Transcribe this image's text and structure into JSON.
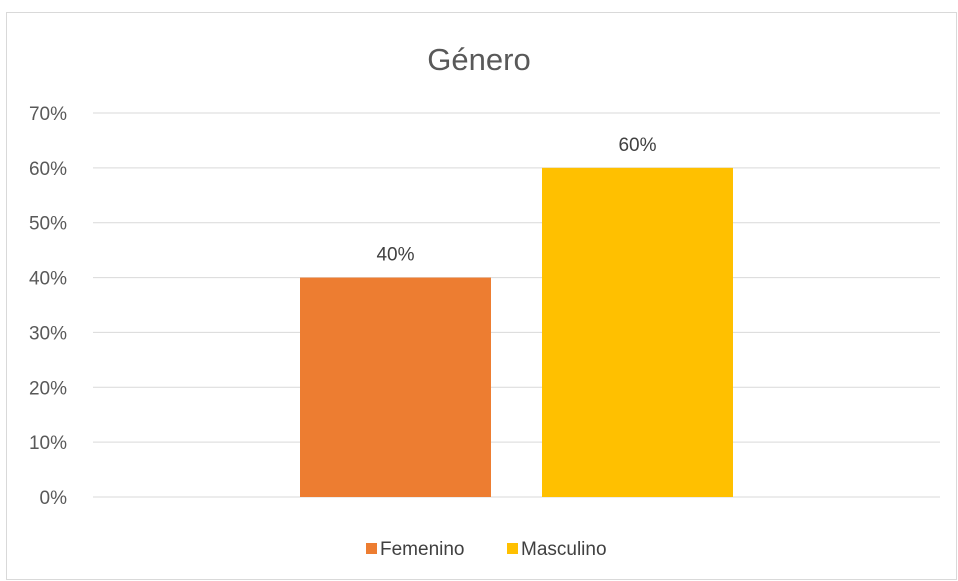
{
  "chart_data": {
    "type": "bar",
    "title": "Género",
    "series": [
      {
        "name": "Femenino",
        "value": 0.4,
        "label": "40%",
        "color": "#ED7D31"
      },
      {
        "name": "Masculino",
        "value": 0.6,
        "label": "60%",
        "color": "#FFC000"
      }
    ],
    "ylim": [
      0,
      0.7
    ],
    "y_ticks": [
      {
        "value": 0.0,
        "label": "0%"
      },
      {
        "value": 0.1,
        "label": "10%"
      },
      {
        "value": 0.2,
        "label": "20%"
      },
      {
        "value": 0.3,
        "label": "30%"
      },
      {
        "value": 0.4,
        "label": "40%"
      },
      {
        "value": 0.5,
        "label": "50%"
      },
      {
        "value": 0.6,
        "label": "60%"
      },
      {
        "value": 0.7,
        "label": "70%"
      }
    ],
    "grid": true,
    "legend_position": "bottom",
    "gridline_color": "#d9d9d9"
  }
}
